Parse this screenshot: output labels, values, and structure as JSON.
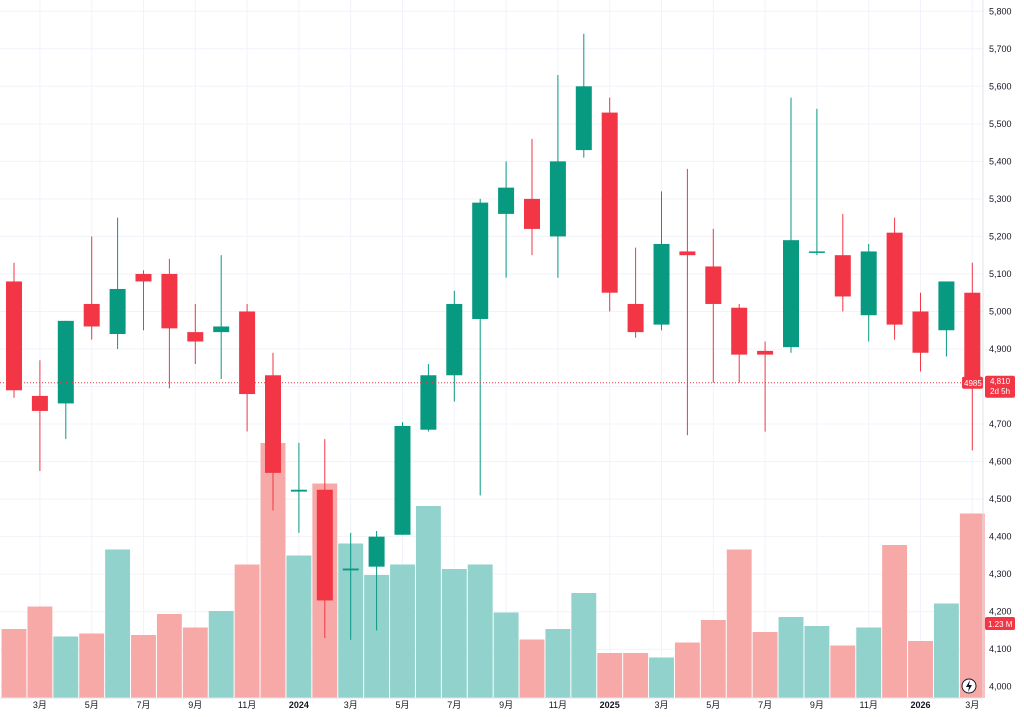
{
  "colors": {
    "up": "#089981",
    "down": "#f23645",
    "up_volume": "#92d2cc",
    "down_volume": "#f7a9a7",
    "grid": "#f0f3fa"
  },
  "price_axis": {
    "labels": [
      "5,800",
      "5,700",
      "5,600",
      "5,500",
      "5,400",
      "5,300",
      "5,200",
      "5,100",
      "5,000",
      "4,900",
      "4,800",
      "4,700",
      "4,600",
      "4,500",
      "4,400",
      "4,300",
      "4,200",
      "4,100",
      "4,000"
    ]
  },
  "time_axis": {
    "labels": [
      {
        "i": 1,
        "text": "3月",
        "bold": false
      },
      {
        "i": 3,
        "text": "5月",
        "bold": false
      },
      {
        "i": 5,
        "text": "7月",
        "bold": false
      },
      {
        "i": 7,
        "text": "9月",
        "bold": false
      },
      {
        "i": 9,
        "text": "11月",
        "bold": false
      },
      {
        "i": 11,
        "text": "2024",
        "bold": true
      },
      {
        "i": 13,
        "text": "3月",
        "bold": false
      },
      {
        "i": 15,
        "text": "5月",
        "bold": false
      },
      {
        "i": 17,
        "text": "7月",
        "bold": false
      },
      {
        "i": 19,
        "text": "9月",
        "bold": false
      },
      {
        "i": 21,
        "text": "11月",
        "bold": false
      },
      {
        "i": 23,
        "text": "2025",
        "bold": true
      },
      {
        "i": 25,
        "text": "3月",
        "bold": false
      },
      {
        "i": 27,
        "text": "5月",
        "bold": false
      },
      {
        "i": 29,
        "text": "7月",
        "bold": false
      },
      {
        "i": 31,
        "text": "9月",
        "bold": false
      },
      {
        "i": 33,
        "text": "11月",
        "bold": false
      },
      {
        "i": 35,
        "text": "2026",
        "bold": true
      },
      {
        "i": 37,
        "text": "3月",
        "bold": false
      }
    ]
  },
  "last_price": {
    "value": 4810,
    "label": "4,810",
    "code": "4985",
    "countdown": "2d 5h"
  },
  "last_volume": {
    "label": "1.23 M"
  },
  "chart_data": {
    "type": "candlestick",
    "interval": "monthly",
    "ylim": [
      3970,
      5830
    ],
    "candles": [
      {
        "o": 5080,
        "h": 5130,
        "l": 4770,
        "c": 4790
      },
      {
        "o": 4775,
        "h": 4870,
        "l": 4575,
        "c": 4735
      },
      {
        "o": 4755,
        "h": 4975,
        "l": 4660,
        "c": 4975
      },
      {
        "o": 5020,
        "h": 5200,
        "l": 4925,
        "c": 4960
      },
      {
        "o": 4940,
        "h": 5250,
        "l": 4900,
        "c": 5060
      },
      {
        "o": 5100,
        "h": 5110,
        "l": 4950,
        "c": 5080
      },
      {
        "o": 5100,
        "h": 5140,
        "l": 4795,
        "c": 4955
      },
      {
        "o": 4945,
        "h": 5020,
        "l": 4860,
        "c": 4920
      },
      {
        "o": 4945,
        "h": 5150,
        "l": 4820,
        "c": 4960
      },
      {
        "o": 5000,
        "h": 5020,
        "l": 4680,
        "c": 4780
      },
      {
        "o": 4830,
        "h": 4890,
        "l": 4470,
        "c": 4570
      },
      {
        "o": 4520,
        "h": 4650,
        "l": 4410,
        "c": 4525
      },
      {
        "o": 4525,
        "h": 4660,
        "l": 4130,
        "c": 4230
      },
      {
        "o": 4310,
        "h": 4410,
        "l": 4125,
        "c": 4315
      },
      {
        "o": 4320,
        "h": 4415,
        "l": 4150,
        "c": 4400
      },
      {
        "o": 4405,
        "h": 4705,
        "l": 4405,
        "c": 4695
      },
      {
        "o": 4685,
        "h": 4860,
        "l": 4680,
        "c": 4830
      },
      {
        "o": 4830,
        "h": 5055,
        "l": 4760,
        "c": 5020
      },
      {
        "o": 4980,
        "h": 5300,
        "l": 4510,
        "c": 5290
      },
      {
        "o": 5260,
        "h": 5400,
        "l": 5090,
        "c": 5330
      },
      {
        "o": 5300,
        "h": 5460,
        "l": 5150,
        "c": 5220
      },
      {
        "o": 5200,
        "h": 5630,
        "l": 5090,
        "c": 5400
      },
      {
        "o": 5430,
        "h": 5740,
        "l": 5410,
        "c": 5600
      },
      {
        "o": 5530,
        "h": 5570,
        "l": 5000,
        "c": 5050
      },
      {
        "o": 5020,
        "h": 5170,
        "l": 4930,
        "c": 4945
      },
      {
        "o": 4965,
        "h": 5320,
        "l": 4950,
        "c": 5180
      },
      {
        "o": 5160,
        "h": 5380,
        "l": 4670,
        "c": 5150
      },
      {
        "o": 5120,
        "h": 5220,
        "l": 4810,
        "c": 5020
      },
      {
        "o": 5010,
        "h": 5020,
        "l": 4810,
        "c": 4885
      },
      {
        "o": 4895,
        "h": 4920,
        "l": 4680,
        "c": 4885
      },
      {
        "o": 4905,
        "h": 5570,
        "l": 4890,
        "c": 5190
      },
      {
        "o": 5160,
        "h": 5540,
        "l": 5150,
        "c": 5160
      },
      {
        "o": 5150,
        "h": 5260,
        "l": 5000,
        "c": 5040
      },
      {
        "o": 4990,
        "h": 5180,
        "l": 4920,
        "c": 5160
      },
      {
        "o": 5210,
        "h": 5250,
        "l": 4925,
        "c": 4965
      },
      {
        "o": 5000,
        "h": 5050,
        "l": 4840,
        "c": 4890
      },
      {
        "o": 4950,
        "h": 5080,
        "l": 4880,
        "c": 5080
      },
      {
        "o": 5050,
        "h": 5130,
        "l": 4630,
        "c": 4810
      }
    ],
    "volume": [
      0.46,
      0.61,
      0.41,
      0.43,
      0.99,
      0.42,
      0.56,
      0.47,
      0.58,
      0.89,
      1.7,
      0.95,
      1.43,
      1.03,
      0.82,
      0.89,
      1.28,
      0.86,
      0.89,
      0.57,
      0.39,
      0.46,
      0.7,
      0.3,
      0.3,
      0.27,
      0.37,
      0.52,
      0.99,
      0.44,
      0.54,
      0.48,
      0.35,
      0.47,
      1.02,
      0.38,
      0.63,
      1.23
    ],
    "volume_max": 2.0
  }
}
